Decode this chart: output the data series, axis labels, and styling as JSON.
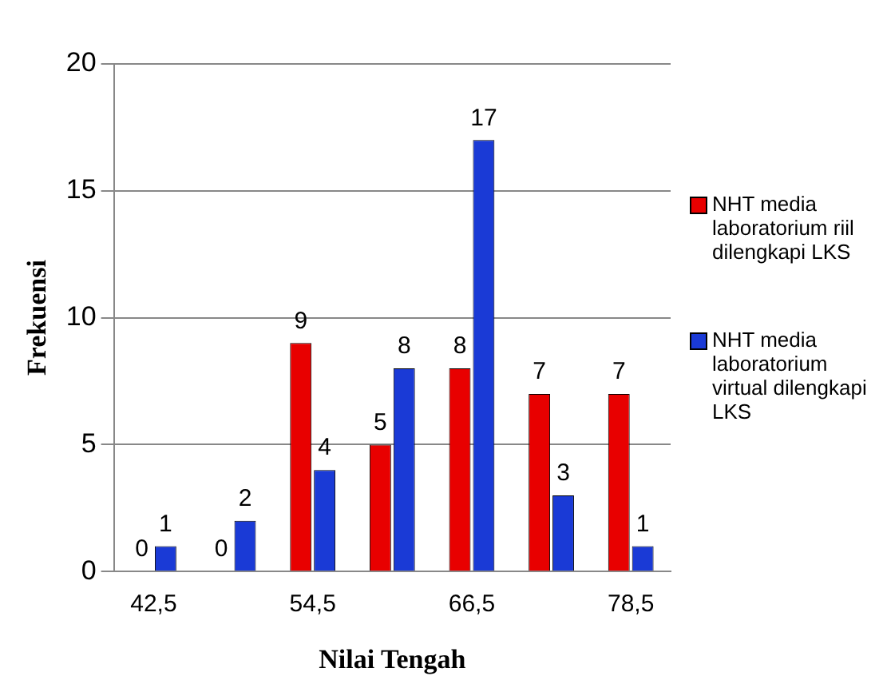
{
  "chart_data": {
    "type": "bar",
    "xlabel": "Nilai Tengah",
    "ylabel": "Frekuensi",
    "categories": [
      "42,5",
      null,
      "54,5",
      null,
      "66,5",
      null,
      "78,5"
    ],
    "series": [
      {
        "name": "NHT media laboratorium riil dilengkapi LKS",
        "color": "#e80000",
        "values": [
          0,
          0,
          9,
          5,
          8,
          7,
          7
        ]
      },
      {
        "name": "NHT media laboratorium virtual dilengkapi LKS",
        "color": "#1a3ad6",
        "values": [
          1,
          2,
          4,
          8,
          17,
          3,
          1
        ]
      }
    ],
    "ylim": [
      0,
      20
    ],
    "yticks": [
      0,
      5,
      10,
      15,
      20
    ],
    "grid": "y",
    "legend": "right",
    "data_labels": true
  }
}
